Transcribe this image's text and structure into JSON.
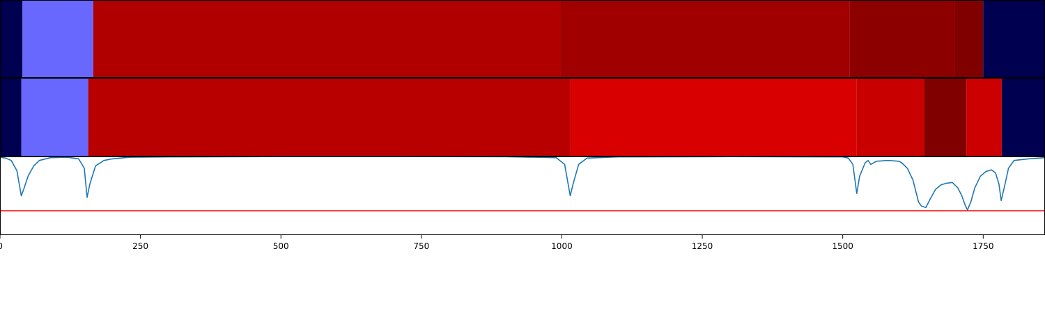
{
  "chart_data": {
    "type": "heatmap",
    "xlim": [
      0,
      1860
    ],
    "x_ticks": [
      0,
      250,
      500,
      750,
      1000,
      1250,
      1500,
      1750
    ],
    "x_tick_labels": [
      "0",
      "250",
      "500",
      "750",
      "1000",
      "1250",
      "1500",
      "1750"
    ],
    "strips": [
      {
        "segments": [
          {
            "start": 0,
            "end": 40,
            "color": "#000050"
          },
          {
            "start": 40,
            "end": 166,
            "color": "#6868ff"
          },
          {
            "start": 166,
            "end": 997,
            "color": "#b00000"
          },
          {
            "start": 997,
            "end": 1512,
            "color": "#a00000"
          },
          {
            "start": 1512,
            "end": 1700,
            "color": "#8c0000"
          },
          {
            "start": 1700,
            "end": 1750,
            "color": "#800000"
          },
          {
            "start": 1750,
            "end": 1860,
            "color": "#000050"
          }
        ]
      },
      {
        "segments": [
          {
            "start": 0,
            "end": 38,
            "color": "#000050"
          },
          {
            "start": 38,
            "end": 157,
            "color": "#6868ff"
          },
          {
            "start": 157,
            "end": 1015,
            "color": "#b80000"
          },
          {
            "start": 1015,
            "end": 1525,
            "color": "#d80000"
          },
          {
            "start": 1525,
            "end": 1645,
            "color": "#c80000"
          },
          {
            "start": 1645,
            "end": 1720,
            "color": "#800000"
          },
          {
            "start": 1720,
            "end": 1783,
            "color": "#cc0000"
          },
          {
            "start": 1783,
            "end": 1860,
            "color": "#000050"
          }
        ]
      }
    ],
    "line": {
      "color": "#1f77b4",
      "ylim": [
        0,
        1
      ],
      "points": [
        [
          0,
          0.99
        ],
        [
          10,
          0.98
        ],
        [
          20,
          0.95
        ],
        [
          30,
          0.82
        ],
        [
          38,
          0.5
        ],
        [
          42,
          0.58
        ],
        [
          50,
          0.75
        ],
        [
          60,
          0.88
        ],
        [
          70,
          0.95
        ],
        [
          90,
          0.985
        ],
        [
          120,
          0.99
        ],
        [
          140,
          0.97
        ],
        [
          150,
          0.85
        ],
        [
          155,
          0.48
        ],
        [
          160,
          0.65
        ],
        [
          170,
          0.88
        ],
        [
          185,
          0.95
        ],
        [
          200,
          0.97
        ],
        [
          230,
          0.99
        ],
        [
          300,
          0.995
        ],
        [
          500,
          0.998
        ],
        [
          700,
          0.998
        ],
        [
          900,
          0.997
        ],
        [
          990,
          0.985
        ],
        [
          1005,
          0.9
        ],
        [
          1015,
          0.5
        ],
        [
          1020,
          0.65
        ],
        [
          1030,
          0.9
        ],
        [
          1045,
          0.98
        ],
        [
          1100,
          0.995
        ],
        [
          1300,
          0.998
        ],
        [
          1500,
          0.995
        ],
        [
          1510,
          0.98
        ],
        [
          1518,
          0.9
        ],
        [
          1525,
          0.53
        ],
        [
          1530,
          0.75
        ],
        [
          1540,
          0.92
        ],
        [
          1545,
          0.95
        ],
        [
          1550,
          0.9
        ],
        [
          1560,
          0.94
        ],
        [
          1580,
          0.95
        ],
        [
          1600,
          0.94
        ],
        [
          1605,
          0.92
        ],
        [
          1615,
          0.85
        ],
        [
          1625,
          0.7
        ],
        [
          1635,
          0.42
        ],
        [
          1640,
          0.37
        ],
        [
          1648,
          0.35
        ],
        [
          1655,
          0.45
        ],
        [
          1665,
          0.58
        ],
        [
          1675,
          0.64
        ],
        [
          1685,
          0.66
        ],
        [
          1695,
          0.67
        ],
        [
          1705,
          0.6
        ],
        [
          1712,
          0.5
        ],
        [
          1718,
          0.38
        ],
        [
          1722,
          0.32
        ],
        [
          1728,
          0.42
        ],
        [
          1735,
          0.6
        ],
        [
          1745,
          0.75
        ],
        [
          1755,
          0.81
        ],
        [
          1765,
          0.83
        ],
        [
          1772,
          0.79
        ],
        [
          1778,
          0.65
        ],
        [
          1782,
          0.44
        ],
        [
          1788,
          0.62
        ],
        [
          1795,
          0.85
        ],
        [
          1805,
          0.95
        ],
        [
          1830,
          0.97
        ],
        [
          1860,
          0.985
        ]
      ]
    },
    "threshold": {
      "y": 0.31,
      "color": "#ff0000"
    }
  }
}
